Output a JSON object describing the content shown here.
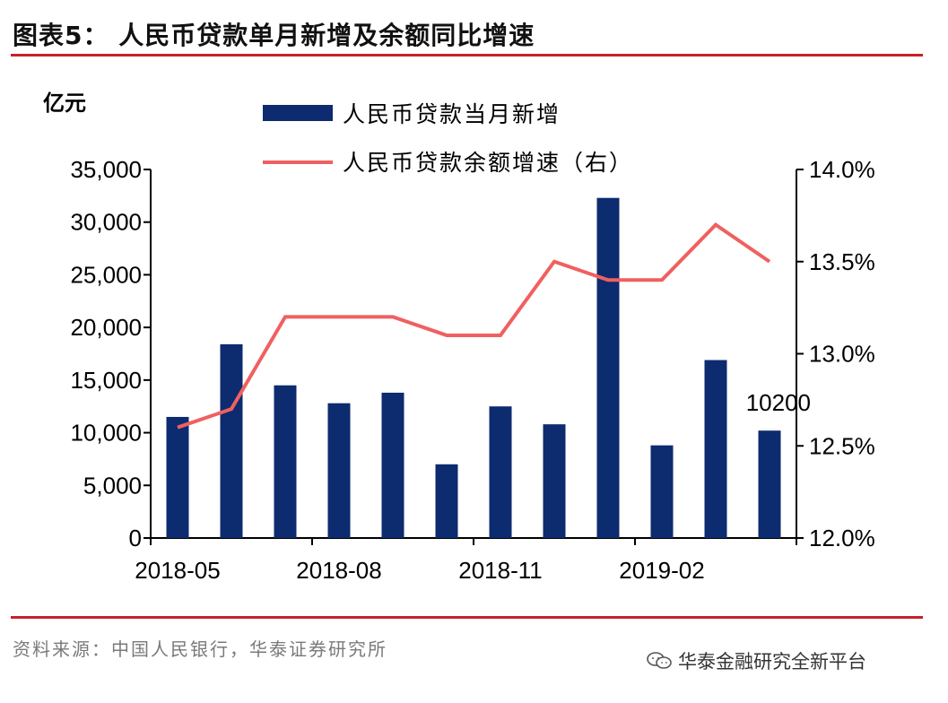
{
  "header": {
    "title": "图表5：  人民币贷款单月新增及余额同比增速"
  },
  "footer": {
    "source": "资料来源：中国人民银行，华泰证券研究所",
    "watermark": "华泰金融研究全新平台"
  },
  "colors": {
    "bar": "#0d2b6f",
    "line": "#f06060",
    "rule": "#c8202a"
  },
  "chart_data": {
    "type": "bar",
    "unit_left": "亿元",
    "categories": [
      "2018-05",
      "2018-06",
      "2018-07",
      "2018-08",
      "2018-09",
      "2018-10",
      "2018-11",
      "2018-12",
      "2019-01",
      "2019-02",
      "2019-03",
      "2019-04"
    ],
    "x_tick_labels": [
      "2018-05",
      "2018-08",
      "2018-11",
      "2019-02"
    ],
    "series": [
      {
        "name": "人民币贷款当月新增",
        "type": "bar",
        "axis": "left",
        "values": [
          11500,
          18400,
          14500,
          12800,
          13800,
          7000,
          12500,
          10800,
          32300,
          8800,
          16900,
          10200
        ]
      },
      {
        "name": "人民币贷款余额增速（右）",
        "type": "line",
        "axis": "right",
        "values": [
          12.6,
          12.7,
          13.2,
          13.2,
          13.2,
          13.1,
          13.1,
          13.5,
          13.4,
          13.4,
          13.7,
          13.5
        ]
      }
    ],
    "y_left": {
      "min": 0,
      "max": 35000,
      "ticks": [
        "0",
        "5,000",
        "10,000",
        "15,000",
        "20,000",
        "25,000",
        "30,000",
        "35,000"
      ]
    },
    "y_right": {
      "min": 12.0,
      "max": 14.0,
      "ticks": [
        "12.0%",
        "12.5%",
        "13.0%",
        "13.5%",
        "14.0%"
      ]
    },
    "annotations": [
      {
        "text": "10200",
        "category": "2019-04"
      }
    ],
    "legend": "top",
    "grid": false
  }
}
